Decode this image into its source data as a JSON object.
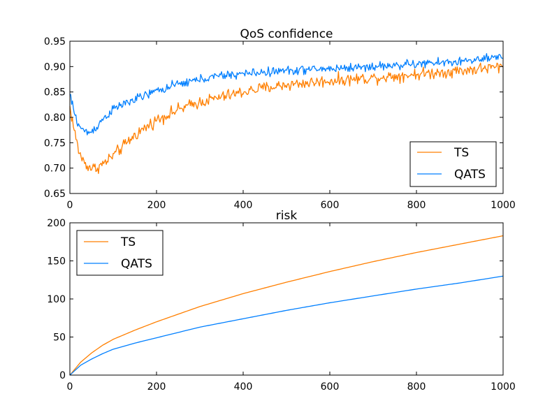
{
  "chart_data": [
    {
      "type": "line",
      "title": "QoS confidence",
      "xlabel": "",
      "ylabel": "",
      "xlim": [
        0,
        1000
      ],
      "ylim": [
        0.65,
        0.95
      ],
      "xticks": [
        0,
        200,
        400,
        600,
        800,
        1000
      ],
      "xtick_labels": [
        "0",
        "200",
        "400",
        "600",
        "800",
        "1000"
      ],
      "yticks": [
        0.65,
        0.7,
        0.75,
        0.8,
        0.85,
        0.9,
        0.95
      ],
      "ytick_labels": [
        "0.65",
        "0.70",
        "0.75",
        "0.80",
        "0.85",
        "0.90",
        "0.95"
      ],
      "grid": false,
      "legend_position": "lower-right",
      "noisy": true,
      "x": [
        0,
        10,
        20,
        30,
        40,
        50,
        60,
        70,
        80,
        100,
        120,
        150,
        200,
        250,
        300,
        350,
        400,
        450,
        500,
        550,
        600,
        700,
        800,
        900,
        1000
      ],
      "series": [
        {
          "name": "TS",
          "color": "#ff7f00",
          "noise": 0.008,
          "values": [
            0.82,
            0.775,
            0.735,
            0.715,
            0.705,
            0.7,
            0.7,
            0.705,
            0.71,
            0.725,
            0.74,
            0.765,
            0.795,
            0.815,
            0.83,
            0.84,
            0.85,
            0.858,
            0.864,
            0.868,
            0.872,
            0.878,
            0.885,
            0.892,
            0.9
          ]
        },
        {
          "name": "QATS",
          "color": "#007fff",
          "noise": 0.006,
          "values": [
            0.845,
            0.81,
            0.785,
            0.775,
            0.77,
            0.772,
            0.78,
            0.79,
            0.8,
            0.815,
            0.825,
            0.835,
            0.852,
            0.865,
            0.875,
            0.882,
            0.886,
            0.889,
            0.892,
            0.894,
            0.896,
            0.9,
            0.905,
            0.91,
            0.918
          ]
        }
      ]
    },
    {
      "type": "line",
      "title": "risk",
      "xlabel": "",
      "ylabel": "",
      "xlim": [
        0,
        1000
      ],
      "ylim": [
        0,
        200
      ],
      "xticks": [
        0,
        200,
        400,
        600,
        800,
        1000
      ],
      "xtick_labels": [
        "0",
        "200",
        "400",
        "600",
        "800",
        "1000"
      ],
      "yticks": [
        0,
        50,
        100,
        150,
        200
      ],
      "ytick_labels": [
        "0",
        "50",
        "100",
        "150",
        "200"
      ],
      "grid": false,
      "legend_position": "upper-left",
      "noisy": false,
      "x": [
        0,
        25,
        50,
        75,
        100,
        150,
        200,
        300,
        400,
        500,
        600,
        700,
        800,
        900,
        1000
      ],
      "series": [
        {
          "name": "TS",
          "color": "#ff7f00",
          "values": [
            0,
            17,
            29,
            39,
            47,
            59,
            70,
            90,
            107,
            122,
            136,
            149,
            161,
            172,
            183
          ]
        },
        {
          "name": "QATS",
          "color": "#007fff",
          "values": [
            0,
            13,
            21,
            28,
            34,
            42,
            49,
            63,
            74,
            85,
            95,
            104,
            113,
            121,
            130
          ]
        }
      ]
    }
  ]
}
